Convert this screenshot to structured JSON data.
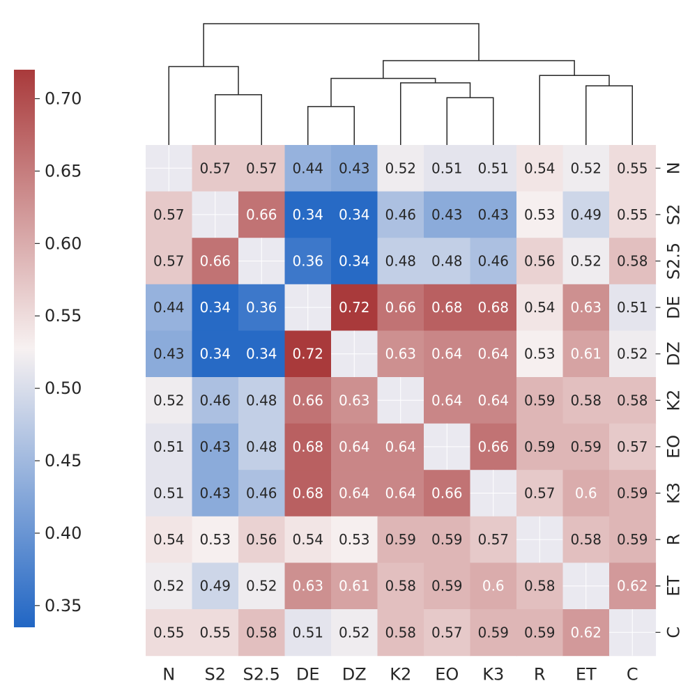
{
  "chart_data": {
    "type": "heatmap",
    "title": "",
    "xlabel": "",
    "ylabel": "",
    "labels": [
      "N",
      "S2",
      "S2.5",
      "DE",
      "DZ",
      "K2",
      "EO",
      "K3",
      "R",
      "ET",
      "C"
    ],
    "values": [
      [
        null,
        0.57,
        0.57,
        0.44,
        0.43,
        0.52,
        0.51,
        0.51,
        0.54,
        0.52,
        0.55
      ],
      [
        0.57,
        null,
        0.66,
        0.34,
        0.34,
        0.46,
        0.43,
        0.43,
        0.53,
        0.49,
        0.55
      ],
      [
        0.57,
        0.66,
        null,
        0.36,
        0.34,
        0.48,
        0.48,
        0.46,
        0.56,
        0.52,
        0.58
      ],
      [
        0.44,
        0.34,
        0.36,
        null,
        0.72,
        0.66,
        0.68,
        0.68,
        0.54,
        0.63,
        0.51
      ],
      [
        0.43,
        0.34,
        0.34,
        0.72,
        null,
        0.63,
        0.64,
        0.64,
        0.53,
        0.61,
        0.52
      ],
      [
        0.52,
        0.46,
        0.48,
        0.66,
        0.63,
        null,
        0.64,
        0.64,
        0.59,
        0.58,
        0.58
      ],
      [
        0.51,
        0.43,
        0.48,
        0.68,
        0.64,
        0.64,
        null,
        0.66,
        0.59,
        0.59,
        0.57
      ],
      [
        0.51,
        0.43,
        0.46,
        0.68,
        0.64,
        0.64,
        0.66,
        null,
        0.57,
        0.6,
        0.59
      ],
      [
        0.54,
        0.53,
        0.56,
        0.54,
        0.53,
        0.59,
        0.59,
        0.57,
        null,
        0.58,
        0.59
      ],
      [
        0.52,
        0.49,
        0.52,
        0.63,
        0.61,
        0.58,
        0.59,
        0.6,
        0.58,
        null,
        0.62
      ],
      [
        0.55,
        0.55,
        0.58,
        0.51,
        0.52,
        0.58,
        0.57,
        0.59,
        0.59,
        0.62,
        null
      ]
    ],
    "value_range": [
      0.335,
      0.72
    ],
    "colormap": "vlag (blue-white-red)",
    "colors": {
      "low": "#2166c4",
      "mid": "#f7f1f1",
      "high": "#a93a3b",
      "diagonal": "#eae9f0"
    },
    "colorbar": {
      "ticks": [
        0.35,
        0.4,
        0.45,
        0.5,
        0.55,
        0.6,
        0.65,
        0.7
      ],
      "tick_labels": [
        "0.35",
        "0.40",
        "0.45",
        "0.50",
        "0.55",
        "0.60",
        "0.65",
        "0.70"
      ],
      "placement": "left"
    },
    "dendrogram": {
      "placement": "top",
      "merges": [
        {
          "left": "DE",
          "right": "DZ",
          "height": 0.26
        },
        {
          "left": "K3",
          "right": "EO",
          "height": 0.32
        },
        {
          "left": "S2",
          "right": "S2.5",
          "height": 0.34
        },
        {
          "left": "K2",
          "right": "K3+EO",
          "height": 0.42
        },
        {
          "left": "ET",
          "right": "C",
          "height": 0.4
        },
        {
          "left": "DE+DZ",
          "right": "K2+K3+EO",
          "height": 0.45
        },
        {
          "left": "R",
          "right": "ET+C",
          "height": 0.47
        },
        {
          "left": "N",
          "right": "S2+S2.5",
          "height": 0.53
        },
        {
          "left": "DE..EO",
          "right": "R+ET+C",
          "height": 0.57
        },
        {
          "left": "N+S2+S2.5",
          "right": "rest",
          "height": 0.82
        }
      ]
    }
  }
}
